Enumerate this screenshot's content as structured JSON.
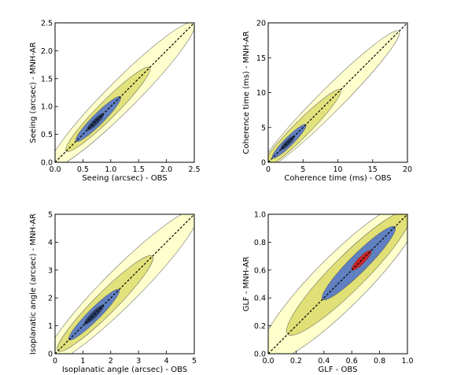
{
  "chart_data": [
    {
      "type": "contour",
      "xlabel": "Seeing (arcsec) - OBS",
      "ylabel": "Seeing (arcsec) - MNH-AR",
      "xlim": [
        0,
        2.5
      ],
      "ylim": [
        0,
        2.5
      ],
      "xticks": [
        "0.0",
        "0.5",
        "1.0",
        "1.5",
        "2.0",
        "2.5"
      ],
      "yticks": [
        "0.0",
        "0.5",
        "1.0",
        "1.5",
        "2.0",
        "2.5"
      ],
      "reference_line": {
        "x": [
          0,
          2.5
        ],
        "y": [
          0,
          2.5
        ],
        "style": "dashed"
      },
      "density_center": [
        0.72,
        0.72
      ],
      "outer_extent": [
        [
          0.25,
          0.2
        ],
        [
          2.1,
          2.2
        ]
      ]
    },
    {
      "type": "contour",
      "xlabel": "Coherence time (ms) - OBS",
      "ylabel": "Coherence time (ms) - MNH-AR",
      "xlim": [
        0,
        20
      ],
      "ylim": [
        0,
        20
      ],
      "xticks": [
        "0",
        "5",
        "10",
        "15",
        "20"
      ],
      "yticks": [
        "0",
        "5",
        "10",
        "15",
        "20"
      ],
      "reference_line": {
        "x": [
          0,
          20
        ],
        "y": [
          0,
          20
        ],
        "style": "dashed"
      },
      "density_center": [
        3,
        3
      ],
      "outer_extent": [
        [
          0.3,
          0.2
        ],
        [
          17,
          16.8
        ]
      ]
    },
    {
      "type": "contour",
      "xlabel": "Isoplanatic angle (arcsec) - OBS",
      "ylabel": "Isoplanatic angle (arcsec) - MNH-AR",
      "xlim": [
        0,
        5
      ],
      "ylim": [
        0,
        5
      ],
      "xticks": [
        "0",
        "1",
        "2",
        "3",
        "4",
        "5"
      ],
      "yticks": [
        "0",
        "1",
        "2",
        "3",
        "4",
        "5"
      ],
      "reference_line": {
        "x": [
          0,
          5
        ],
        "y": [
          0,
          5
        ],
        "style": "dashed"
      },
      "density_center": [
        1.5,
        1.45
      ],
      "outer_extent": [
        [
          0.5,
          0.4
        ],
        [
          4.6,
          4.7
        ]
      ]
    },
    {
      "type": "contour",
      "xlabel": "GLF - OBS",
      "ylabel": "GLF - MNH-AR",
      "xlim": [
        0,
        1
      ],
      "ylim": [
        0,
        1
      ],
      "xticks": [
        "0.0",
        "0.2",
        "0.4",
        "0.6",
        "0.8",
        "1.0"
      ],
      "yticks": [
        "0.0",
        "0.2",
        "0.4",
        "0.6",
        "0.8",
        "1.0"
      ],
      "reference_line": {
        "x": [
          0,
          1
        ],
        "y": [
          0,
          1
        ],
        "style": "dashed"
      },
      "density_center": [
        0.7,
        0.7
      ],
      "outer_extent": [
        [
          0.15,
          0.08
        ],
        [
          0.98,
          0.98
        ]
      ]
    }
  ],
  "colors": {
    "low_density": "#ffffc8",
    "mid_density": "#d8d860",
    "high_density": "#4a6fd0",
    "peak": "#cc2020",
    "dark_core": "#20305a"
  }
}
